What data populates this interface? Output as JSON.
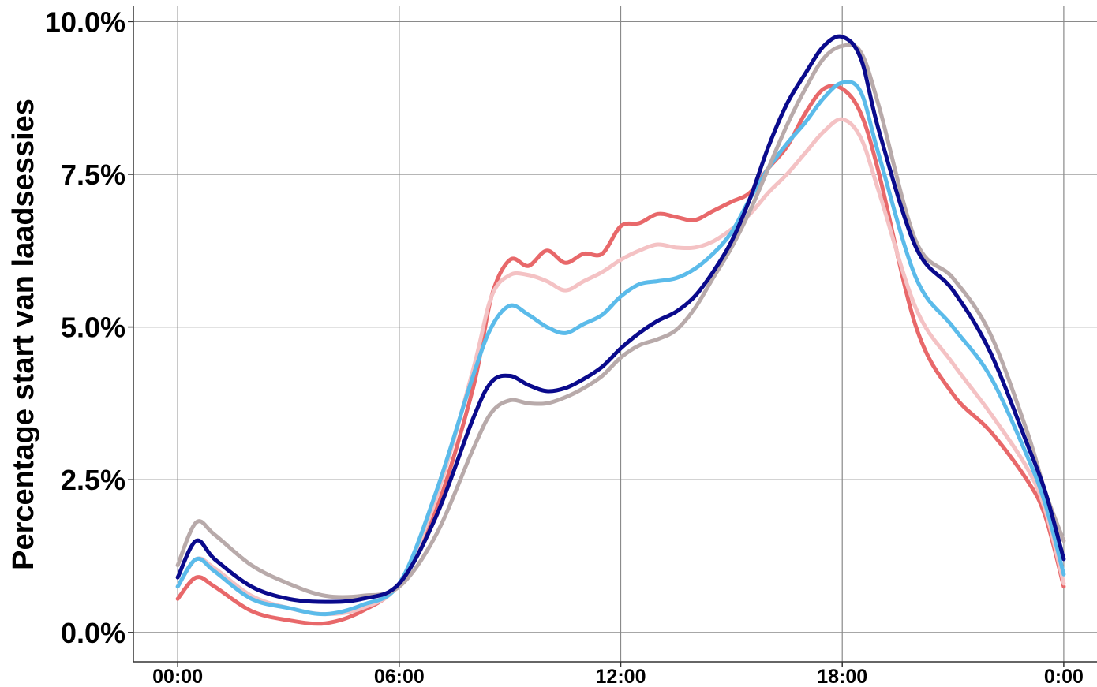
{
  "chart_data": {
    "type": "line",
    "title": "",
    "xlabel": "",
    "ylabel": "Percentage start van laadsessies",
    "x_tick_labels": [
      "00:00",
      "06:00",
      "12:00",
      "18:00",
      "0:00"
    ],
    "x_ticks_hours": [
      0,
      6,
      12,
      18,
      24
    ],
    "y_tick_labels": [
      "0.0%",
      "2.5%",
      "5.0%",
      "7.5%",
      "10.0%"
    ],
    "y_ticks": [
      0,
      2.5,
      5,
      7.5,
      10
    ],
    "xlim": [
      -1.2,
      24.9
    ],
    "ylim": [
      -0.48,
      10.25
    ],
    "x_hours": [
      0,
      0.5,
      1,
      2,
      3,
      4,
      5,
      6,
      7,
      8,
      8.5,
      9,
      9.5,
      10,
      10.5,
      11,
      11.5,
      12,
      12.5,
      13,
      13.5,
      14,
      14.5,
      15,
      15.5,
      16,
      16.5,
      17,
      17.5,
      18,
      18.5,
      19,
      20,
      21,
      22,
      23,
      23.5,
      24
    ],
    "grid": true,
    "legend": "none",
    "series": [
      {
        "color": "#e8686a",
        "values": [
          0.55,
          0.9,
          0.75,
          0.35,
          0.2,
          0.15,
          0.35,
          0.8,
          2.0,
          4.0,
          5.5,
          6.1,
          6.0,
          6.25,
          6.05,
          6.2,
          6.2,
          6.65,
          6.7,
          6.85,
          6.8,
          6.75,
          6.9,
          7.05,
          7.2,
          7.6,
          7.95,
          8.5,
          8.9,
          8.9,
          8.5,
          7.5,
          5.0,
          3.9,
          3.3,
          2.5,
          1.9,
          0.75
        ]
      },
      {
        "color": "#f4c2c4",
        "values": [
          0.75,
          1.2,
          1.05,
          0.6,
          0.4,
          0.3,
          0.4,
          0.8,
          2.2,
          4.3,
          5.5,
          5.85,
          5.85,
          5.75,
          5.6,
          5.75,
          5.9,
          6.1,
          6.25,
          6.35,
          6.3,
          6.3,
          6.4,
          6.6,
          6.85,
          7.2,
          7.5,
          7.85,
          8.2,
          8.4,
          8.1,
          7.2,
          5.3,
          4.4,
          3.6,
          2.7,
          2.0,
          0.8
        ]
      },
      {
        "color": "#5bbbea",
        "values": [
          0.75,
          1.2,
          1.0,
          0.55,
          0.4,
          0.3,
          0.45,
          0.8,
          2.3,
          4.2,
          5.0,
          5.35,
          5.2,
          5.0,
          4.9,
          5.05,
          5.2,
          5.5,
          5.7,
          5.75,
          5.8,
          5.95,
          6.2,
          6.55,
          7.1,
          7.6,
          8.0,
          8.35,
          8.75,
          9.0,
          8.85,
          7.8,
          5.8,
          5.0,
          4.2,
          2.9,
          2.1,
          0.95
        ]
      },
      {
        "color": "#b8aaaa",
        "values": [
          1.1,
          1.8,
          1.6,
          1.1,
          0.8,
          0.6,
          0.6,
          0.75,
          1.6,
          3.0,
          3.6,
          3.8,
          3.75,
          3.75,
          3.85,
          4.0,
          4.2,
          4.5,
          4.7,
          4.8,
          4.95,
          5.3,
          5.8,
          6.3,
          6.9,
          7.6,
          8.3,
          8.9,
          9.4,
          9.6,
          9.5,
          8.6,
          6.4,
          5.8,
          4.9,
          3.3,
          2.3,
          1.5
        ]
      },
      {
        "color": "#0a0a8c",
        "values": [
          0.9,
          1.5,
          1.2,
          0.75,
          0.55,
          0.5,
          0.55,
          0.8,
          1.9,
          3.5,
          4.1,
          4.2,
          4.05,
          3.95,
          4.0,
          4.15,
          4.35,
          4.65,
          4.9,
          5.1,
          5.25,
          5.5,
          5.9,
          6.4,
          7.1,
          7.95,
          8.65,
          9.15,
          9.6,
          9.75,
          9.4,
          8.2,
          6.3,
          5.6,
          4.6,
          3.1,
          2.3,
          1.2
        ]
      }
    ]
  }
}
